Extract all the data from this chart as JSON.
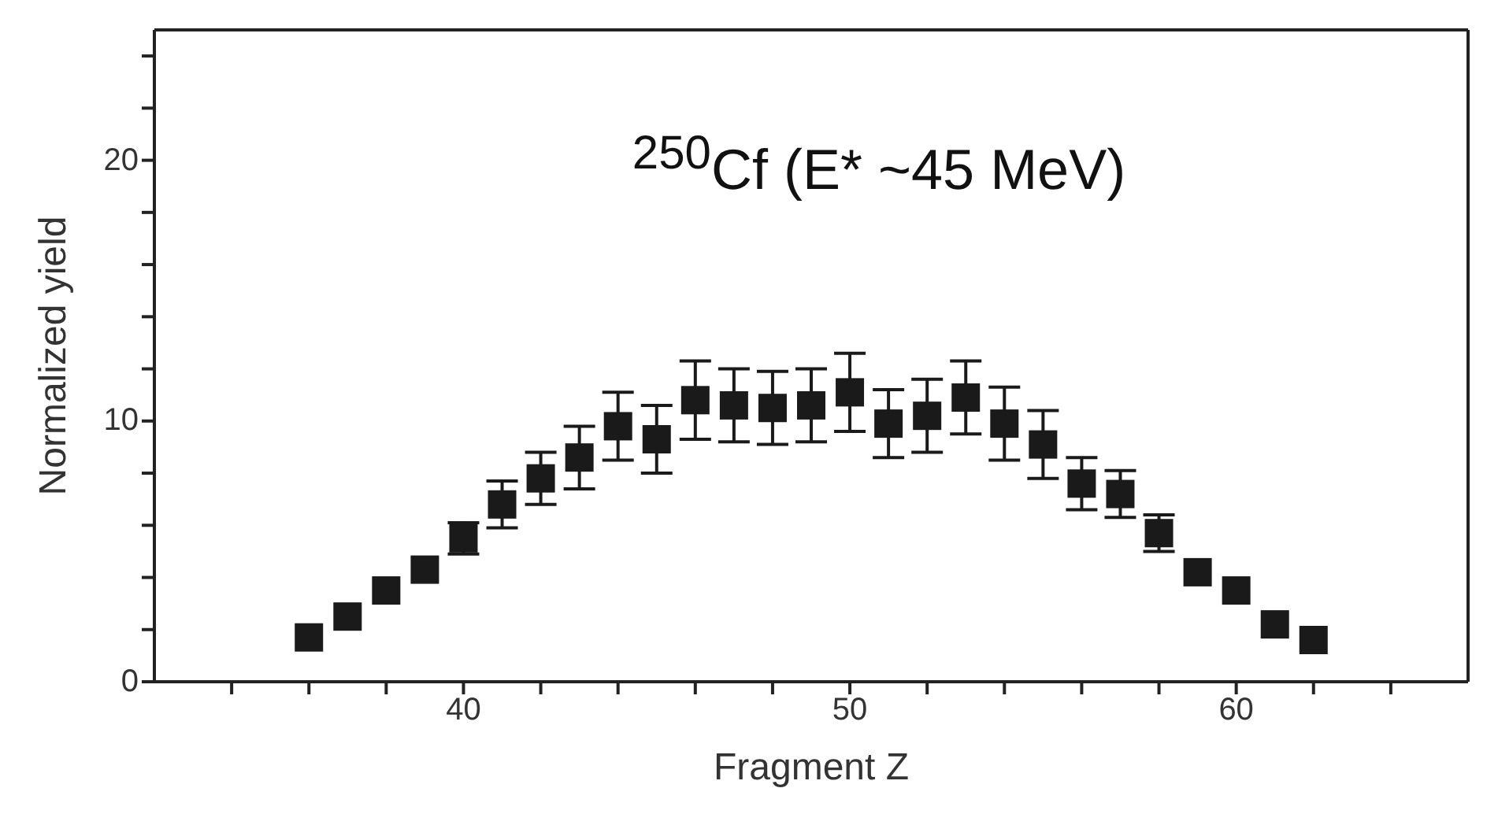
{
  "chart_data": {
    "type": "scatter",
    "xlabel": "Fragment Z",
    "ylabel": "Normalized yield",
    "annotations": [
      "$^{250}$Cf (E* ~45 MeV)"
    ],
    "x": [
      36,
      37,
      38,
      39,
      40,
      41,
      42,
      43,
      44,
      45,
      46,
      47,
      48,
      49,
      50,
      51,
      52,
      53,
      54,
      55,
      56,
      57,
      58,
      59,
      60,
      61,
      62
    ],
    "series": [
      {
        "color": "#1a1a1a",
        "values": [
          1.7,
          2.5,
          3.5,
          4.3,
          5.5,
          6.8,
          7.8,
          8.6,
          9.8,
          9.3,
          10.8,
          10.6,
          10.5,
          10.6,
          11.1,
          9.9,
          10.2,
          10.9,
          9.9,
          9.1,
          7.6,
          7.2,
          5.7,
          4.2,
          3.5,
          2.2,
          1.6
        ],
        "errors": [
          null,
          null,
          null,
          null,
          0.6,
          0.9,
          1.0,
          1.2,
          1.3,
          1.3,
          1.5,
          1.4,
          1.4,
          1.4,
          1.5,
          1.3,
          1.4,
          1.4,
          1.4,
          1.3,
          1.0,
          0.9,
          0.7,
          null,
          null,
          null,
          null
        ]
      }
    ],
    "marker": "square",
    "grid": false,
    "legend": false,
    "xlim": [
      32,
      66
    ],
    "xticks": [
      {
        "value": 34,
        "label": null
      },
      {
        "value": 36,
        "label": null
      },
      {
        "value": 38,
        "label": null
      },
      40,
      {
        "value": 42,
        "label": null
      },
      {
        "value": 44,
        "label": null
      },
      {
        "value": 46,
        "label": null
      },
      {
        "value": 48,
        "label": null
      },
      50,
      {
        "value": 52,
        "label": null
      },
      {
        "value": 54,
        "label": null
      },
      {
        "value": 56,
        "label": null
      },
      {
        "value": 58,
        "label": null
      },
      60,
      {
        "value": 62,
        "label": null
      },
      {
        "value": 64,
        "label": null
      }
    ],
    "ylim": [
      0,
      25
    ],
    "yticks": [
      0,
      {
        "value": 2,
        "label": null
      },
      {
        "value": 4,
        "label": null
      },
      {
        "value": 6,
        "label": null
      },
      {
        "value": 8,
        "label": null
      },
      10,
      {
        "value": 12,
        "label": null
      },
      {
        "value": 14,
        "label": null
      },
      {
        "value": 16,
        "label": null
      },
      {
        "value": 18,
        "label": null
      },
      20,
      {
        "value": 22,
        "label": null
      },
      {
        "value": 24,
        "label": null
      }
    ]
  }
}
